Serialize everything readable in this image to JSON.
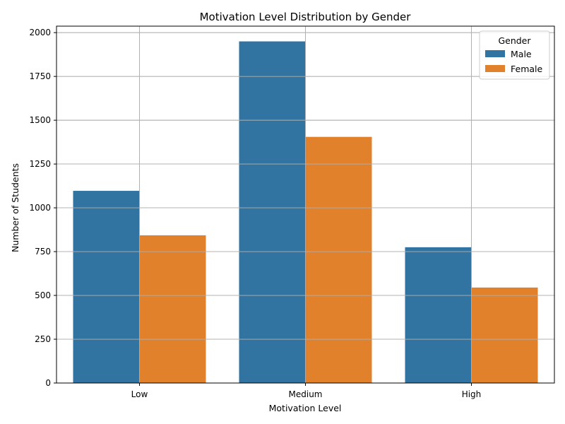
{
  "chart_data": {
    "type": "bar",
    "title": "Motivation Level Distribution by Gender",
    "xlabel": "Motivation Level",
    "ylabel": "Number of Students",
    "categories": [
      "Low",
      "Medium",
      "High"
    ],
    "series": [
      {
        "name": "Male",
        "color": "#3274a1",
        "values": [
          1097,
          1950,
          775
        ]
      },
      {
        "name": "Female",
        "color": "#e1812c",
        "values": [
          843,
          1405,
          545
        ]
      }
    ],
    "ylim": [
      0,
      2037
    ],
    "yticks": [
      0,
      250,
      500,
      750,
      1000,
      1250,
      1500,
      1750,
      2000
    ],
    "grid": true,
    "legend": {
      "title": "Gender",
      "position": "top-right"
    }
  }
}
